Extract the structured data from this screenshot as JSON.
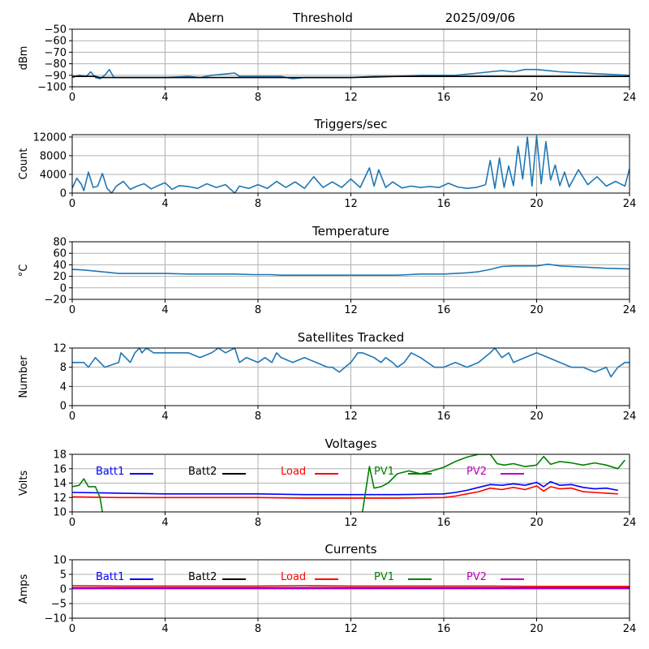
{
  "chart_data": [
    {
      "type": "line",
      "title_parts": [
        "Abern",
        "Threshold",
        "2025/09/06"
      ],
      "ylabel": "dBm",
      "xlim": [
        0,
        24
      ],
      "ylim": [
        -100,
        -50
      ],
      "xticks": [
        0,
        4,
        8,
        12,
        16,
        20,
        24
      ],
      "yticks": [
        -100,
        -90,
        -80,
        -70,
        -60,
        -50
      ],
      "grid": true,
      "series": [
        {
          "color": "#1f77b4",
          "x": [
            0,
            0.3,
            0.6,
            0.8,
            1.0,
            1.2,
            1.4,
            1.6,
            1.8,
            2.0,
            3,
            4,
            5,
            5.5,
            6,
            6.5,
            7,
            7.2,
            8,
            9,
            9.5,
            10,
            11,
            12,
            13,
            14,
            15,
            16,
            16.5,
            17,
            17.5,
            18,
            18.5,
            19,
            19.5,
            20,
            20.5,
            21,
            22,
            23,
            24
          ],
          "y": [
            -92,
            -90,
            -91,
            -87,
            -92,
            -93,
            -90,
            -85,
            -92,
            -92,
            -92,
            -92,
            -91,
            -92,
            -90,
            -89,
            -88,
            -91,
            -91,
            -91,
            -93,
            -92,
            -92,
            -92,
            -91,
            -91,
            -90,
            -90,
            -90,
            -89,
            -88,
            -87,
            -86,
            -87,
            -85,
            -85,
            -86,
            -87,
            -88,
            -89,
            -90
          ]
        },
        {
          "color": "#000000",
          "x": [
            0,
            0.5,
            1.0,
            1.2,
            1.5,
            2.0,
            2.5,
            4,
            6,
            8,
            10,
            12,
            14,
            16,
            18,
            20,
            22,
            24
          ],
          "y": [
            -91,
            -91,
            -91,
            -92,
            -92,
            -92,
            -92,
            -92,
            -92,
            -92,
            -92,
            -92,
            -91,
            -91,
            -91,
            -91,
            -91,
            -91
          ]
        }
      ]
    },
    {
      "type": "line",
      "title": "Triggers/sec",
      "ylabel": "Count",
      "xlim": [
        0,
        24
      ],
      "ylim": [
        0,
        12500
      ],
      "xticks": [
        0,
        4,
        8,
        12,
        16,
        20,
        24
      ],
      "yticks": [
        0,
        4000,
        8000,
        12000
      ],
      "grid": true,
      "series": [
        {
          "color": "#1f77b4",
          "x": [
            0,
            0.2,
            0.4,
            0.5,
            0.7,
            0.9,
            1.1,
            1.3,
            1.5,
            1.7,
            1.9,
            2.2,
            2.5,
            2.8,
            3.1,
            3.4,
            3.7,
            4.0,
            4.3,
            4.6,
            5.0,
            5.4,
            5.8,
            6.2,
            6.6,
            7.0,
            7.2,
            7.6,
            8.0,
            8.4,
            8.8,
            9.2,
            9.6,
            10.0,
            10.4,
            10.8,
            11.2,
            11.6,
            12.0,
            12.4,
            12.8,
            13.0,
            13.2,
            13.5,
            13.8,
            14.2,
            14.6,
            15.0,
            15.4,
            15.8,
            16.2,
            16.6,
            17.0,
            17.4,
            17.8,
            18.0,
            18.2,
            18.4,
            18.6,
            18.8,
            19.0,
            19.2,
            19.4,
            19.6,
            19.8,
            20.0,
            20.2,
            20.4,
            20.6,
            20.8,
            21.0,
            21.2,
            21.4,
            21.8,
            22.2,
            22.6,
            23.0,
            23.4,
            23.8,
            24.0
          ],
          "y": [
            1000,
            3200,
            1800,
            500,
            4500,
            1200,
            1500,
            4200,
            1000,
            0,
            1500,
            2500,
            800,
            1500,
            2000,
            900,
            1600,
            2200,
            800,
            1600,
            1400,
            1000,
            2000,
            1200,
            1800,
            0,
            1500,
            1000,
            1800,
            1000,
            2500,
            1200,
            2400,
            1000,
            3500,
            1200,
            2400,
            1200,
            3000,
            1200,
            5400,
            1500,
            5000,
            1200,
            2400,
            1100,
            1500,
            1200,
            1400,
            1200,
            2100,
            1300,
            1000,
            1200,
            1800,
            7000,
            1000,
            7500,
            1200,
            5800,
            1600,
            10000,
            3000,
            12000,
            1500,
            12200,
            2000,
            11000,
            2800,
            6000,
            1600,
            4500,
            1300,
            5000,
            1800,
            3500,
            1500,
            2500,
            1500,
            5200
          ]
        }
      ]
    },
    {
      "type": "line",
      "title": "Temperature",
      "ylabel": "°C",
      "xlim": [
        0,
        24
      ],
      "ylim": [
        -20,
        80
      ],
      "xticks": [
        0,
        4,
        8,
        12,
        16,
        20,
        24
      ],
      "yticks": [
        -20,
        0,
        20,
        40,
        60,
        80
      ],
      "grid": true,
      "series": [
        {
          "color": "#1f77b4",
          "x": [
            0,
            0.5,
            1,
            1.5,
            2,
            3,
            4,
            5,
            6,
            7,
            7.8,
            8.5,
            9,
            10,
            11,
            12,
            13,
            14,
            14.5,
            15,
            16,
            16.5,
            17,
            17.5,
            18,
            18.5,
            19,
            20,
            20.5,
            21,
            22,
            23,
            24
          ],
          "y": [
            32,
            31,
            29,
            27,
            25,
            25,
            25,
            24,
            24,
            24,
            23,
            23,
            22,
            22,
            22,
            22,
            22,
            22,
            23,
            24,
            24,
            25,
            26,
            28,
            32,
            37,
            38,
            38,
            41,
            38,
            36,
            34,
            33
          ]
        }
      ]
    },
    {
      "type": "line",
      "title": "Satellites Tracked",
      "ylabel": "Number",
      "xlim": [
        0,
        24
      ],
      "ylim": [
        0,
        12
      ],
      "xticks": [
        0,
        4,
        8,
        12,
        16,
        20,
        24
      ],
      "yticks": [
        0,
        4,
        8,
        12
      ],
      "grid": true,
      "series": [
        {
          "color": "#1f77b4",
          "x": [
            0,
            0.5,
            0.7,
            1.0,
            1.2,
            1.4,
            2.0,
            2.1,
            2.3,
            2.5,
            2.7,
            2.9,
            3.0,
            3.2,
            3.5,
            4.0,
            5.0,
            5.5,
            6.0,
            6.3,
            6.6,
            7.0,
            7.2,
            7.5,
            8.0,
            8.3,
            8.6,
            8.8,
            9.0,
            9.5,
            10.0,
            10.5,
            11.0,
            11.2,
            11.5,
            12.0,
            12.3,
            12.5,
            13.0,
            13.3,
            13.5,
            13.8,
            14.0,
            14.3,
            14.6,
            15.0,
            15.3,
            15.6,
            16.0,
            16.5,
            17.0,
            17.5,
            18.0,
            18.2,
            18.5,
            18.8,
            19.0,
            19.5,
            20.0,
            20.5,
            21.0,
            21.5,
            22.0,
            22.5,
            23.0,
            23.2,
            23.5,
            23.8,
            24.0
          ],
          "y": [
            9,
            9,
            8,
            10,
            9,
            8,
            9,
            11,
            10,
            9,
            11,
            12,
            11,
            12,
            11,
            11,
            11,
            10,
            11,
            12,
            11,
            12,
            9,
            10,
            9,
            10,
            9,
            11,
            10,
            9,
            10,
            9,
            8,
            8,
            7,
            9,
            11,
            11,
            10,
            9,
            10,
            9,
            8,
            9,
            11,
            10,
            9,
            8,
            8,
            9,
            8,
            9,
            11,
            12,
            10,
            11,
            9,
            10,
            11,
            10,
            9,
            8,
            8,
            7,
            8,
            6,
            8,
            9,
            9
          ]
        }
      ]
    },
    {
      "type": "line",
      "title": "Voltages",
      "ylabel": "Volts",
      "xlim": [
        0,
        24
      ],
      "ylim": [
        10,
        18
      ],
      "xticks": [
        0,
        4,
        8,
        12,
        16,
        20,
        24
      ],
      "yticks": [
        10,
        12,
        14,
        16,
        18
      ],
      "grid": true,
      "legend": "top",
      "series": [
        {
          "name": "Batt1",
          "color": "#0000ff",
          "x": [
            0,
            2,
            4,
            6,
            8,
            10,
            12,
            14,
            16,
            16.5,
            17,
            17.5,
            18,
            18.5,
            19,
            19.5,
            20,
            20.3,
            20.6,
            21,
            21.5,
            22,
            22.5,
            23,
            23.5
          ],
          "y": [
            12.7,
            12.6,
            12.5,
            12.5,
            12.5,
            12.4,
            12.4,
            12.4,
            12.5,
            12.7,
            13.0,
            13.4,
            13.8,
            13.7,
            13.9,
            13.7,
            14.1,
            13.5,
            14.2,
            13.7,
            13.8,
            13.4,
            13.2,
            13.3,
            13.0
          ]
        },
        {
          "name": "Batt2",
          "color": "#000000",
          "x": [],
          "y": []
        },
        {
          "name": "Load",
          "color": "#ff0000",
          "x": [
            0,
            2,
            4,
            6,
            8,
            10,
            12,
            14,
            16,
            16.5,
            17,
            17.5,
            18,
            18.5,
            19,
            19.5,
            20,
            20.3,
            20.6,
            21,
            21.5,
            22,
            22.5,
            23,
            23.5
          ],
          "y": [
            12.1,
            12.0,
            12.0,
            12.0,
            12.0,
            11.9,
            11.9,
            11.9,
            12.0,
            12.2,
            12.5,
            12.8,
            13.3,
            13.1,
            13.4,
            13.1,
            13.6,
            12.9,
            13.5,
            13.2,
            13.3,
            12.8,
            12.7,
            12.6,
            12.5
          ]
        },
        {
          "name": "PV1",
          "color": "#008000",
          "x": [
            0,
            0.3,
            0.5,
            0.7,
            1.0,
            1.2,
            1.3,
            null,
            12.5,
            12.8,
            13.0,
            13.3,
            13.6,
            14.0,
            14.5,
            15.0,
            15.5,
            16.0,
            16.5,
            17.0,
            17.5,
            18.0,
            18.3,
            18.6,
            19.0,
            19.5,
            20.0,
            20.3,
            20.6,
            21.0,
            21.5,
            22.0,
            22.5,
            23.0,
            23.5,
            23.8
          ],
          "y": [
            13.5,
            13.7,
            14.6,
            13.5,
            13.5,
            12.0,
            10.0,
            null,
            10.0,
            16.3,
            13.3,
            13.5,
            14.0,
            15.3,
            15.7,
            15.3,
            15.7,
            16.2,
            17.0,
            17.6,
            18.0,
            18.0,
            16.7,
            16.5,
            16.7,
            16.3,
            16.5,
            17.7,
            16.6,
            17.0,
            16.8,
            16.5,
            16.8,
            16.5,
            16.0,
            17.2
          ]
        },
        {
          "name": "PV2",
          "color": "#bf00bf",
          "x": [],
          "y": []
        }
      ]
    },
    {
      "type": "line",
      "title": "Currents",
      "ylabel": "Amps",
      "xlim": [
        0,
        24
      ],
      "ylim": [
        -10,
        10
      ],
      "xticks": [
        0,
        4,
        8,
        12,
        16,
        20,
        24
      ],
      "yticks": [
        -10,
        -5,
        0,
        5,
        10
      ],
      "grid": true,
      "legend": "top",
      "series": [
        {
          "name": "Batt1",
          "color": "#0000ff",
          "x": [
            0,
            4,
            8,
            12,
            16,
            20,
            24
          ],
          "y": [
            0.4,
            0.4,
            0.4,
            0.4,
            0.4,
            0.4,
            0.4
          ]
        },
        {
          "name": "Batt2",
          "color": "#000000",
          "x": [],
          "y": []
        },
        {
          "name": "Load",
          "color": "#ff0000",
          "x": [
            0,
            2,
            4,
            6,
            8,
            10,
            12,
            14,
            16,
            18,
            20,
            22,
            24
          ],
          "y": [
            1.1,
            1.0,
            1.0,
            1.0,
            1.0,
            1.1,
            1.0,
            1.0,
            1.0,
            1.0,
            0.9,
            0.9,
            0.9
          ]
        },
        {
          "name": "PV1",
          "color": "#008000",
          "x": [],
          "y": []
        },
        {
          "name": "PV2",
          "color": "#bf00bf",
          "x": [
            0,
            4,
            8,
            12,
            16,
            20,
            24
          ],
          "y": [
            0.1,
            0.1,
            0.1,
            0.1,
            0.1,
            0.1,
            0.1
          ]
        }
      ]
    }
  ]
}
